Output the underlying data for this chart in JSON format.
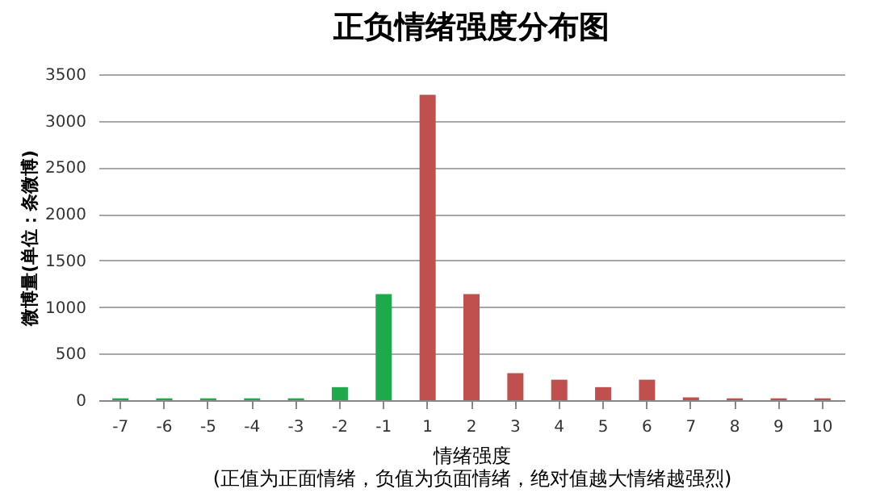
{
  "chart_data": {
    "type": "bar",
    "title": "正负情绪强度分布图",
    "xlabel": "情绪强度",
    "ylabel": "微博量(单位：条微博)",
    "annotations": [
      "(正值为正面情绪，负值为负面情绪，绝对值越大情绪越强烈)"
    ],
    "categories": [
      "-7",
      "-6",
      "-5",
      "-4",
      "-3",
      "-2",
      "-1",
      "1",
      "2",
      "3",
      "4",
      "5",
      "6",
      "7",
      "8",
      "9",
      "10"
    ],
    "values": [
      20,
      20,
      20,
      20,
      20,
      140,
      1140,
      3280,
      1140,
      290,
      220,
      140,
      220,
      30,
      20,
      20,
      20
    ],
    "colors": [
      "#1eaa4a",
      "#1eaa4a",
      "#1eaa4a",
      "#1eaa4a",
      "#1eaa4a",
      "#1eaa4a",
      "#1eaa4a",
      "#c0504d",
      "#c0504d",
      "#c0504d",
      "#c0504d",
      "#c0504d",
      "#c0504d",
      "#c0504d",
      "#c0504d",
      "#c0504d",
      "#c0504d"
    ],
    "ylim": [
      0,
      3500
    ],
    "yticks": [
      0,
      500,
      1000,
      1500,
      2000,
      2500,
      3000,
      3500
    ],
    "grid": "y",
    "legend": false
  }
}
